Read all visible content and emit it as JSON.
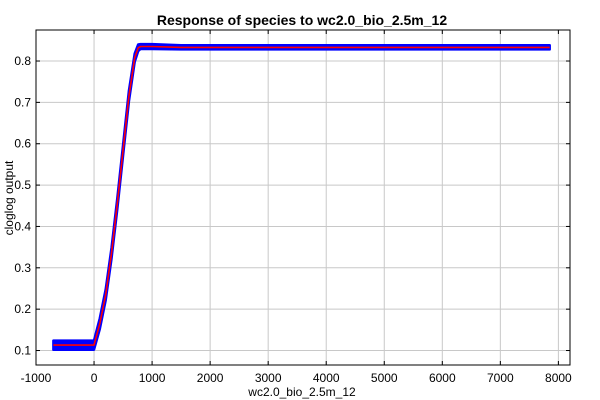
{
  "chart_data": {
    "type": "line",
    "title": "Response of species to wc2.0_bio_2.5m_12",
    "xlabel": "wc2.0_bio_2.5m_12",
    "ylabel": "cloglog output",
    "xlim": [
      -1000,
      8200
    ],
    "ylim": [
      0.065,
      0.875
    ],
    "xticks": [
      -1000,
      0,
      1000,
      2000,
      3000,
      4000,
      5000,
      6000,
      7000,
      8000
    ],
    "yticks": [
      0.1,
      0.2,
      0.3,
      0.4,
      0.5,
      0.6,
      0.7,
      0.8
    ],
    "grid": true,
    "series": [
      {
        "role": "mean",
        "color": "#ff0000",
        "x": [
          -700,
          0,
          100,
          200,
          300,
          400,
          500,
          600,
          700,
          760,
          800,
          1000,
          1500,
          2000,
          3000,
          4000,
          5000,
          6000,
          7000,
          7850
        ],
        "y": [
          0.113,
          0.113,
          0.165,
          0.235,
          0.335,
          0.455,
          0.585,
          0.715,
          0.808,
          0.832,
          0.835,
          0.835,
          0.833,
          0.833,
          0.833,
          0.833,
          0.833,
          0.833,
          0.833,
          0.833
        ]
      },
      {
        "role": "band",
        "color": "#0000ff",
        "x": [
          -700,
          0,
          100,
          200,
          300,
          400,
          500,
          600,
          700,
          760,
          800,
          1000,
          1500,
          2000,
          3000,
          4000,
          5000,
          6000,
          7000,
          7850
        ],
        "upper": [
          0.124,
          0.124,
          0.178,
          0.248,
          0.348,
          0.468,
          0.598,
          0.728,
          0.818,
          0.84,
          0.841,
          0.841,
          0.838,
          0.838,
          0.838,
          0.838,
          0.838,
          0.838,
          0.838,
          0.838
        ],
        "lower": [
          0.102,
          0.102,
          0.152,
          0.222,
          0.322,
          0.442,
          0.572,
          0.702,
          0.798,
          0.824,
          0.829,
          0.829,
          0.828,
          0.828,
          0.828,
          0.828,
          0.828,
          0.828,
          0.828,
          0.828
        ]
      }
    ]
  }
}
